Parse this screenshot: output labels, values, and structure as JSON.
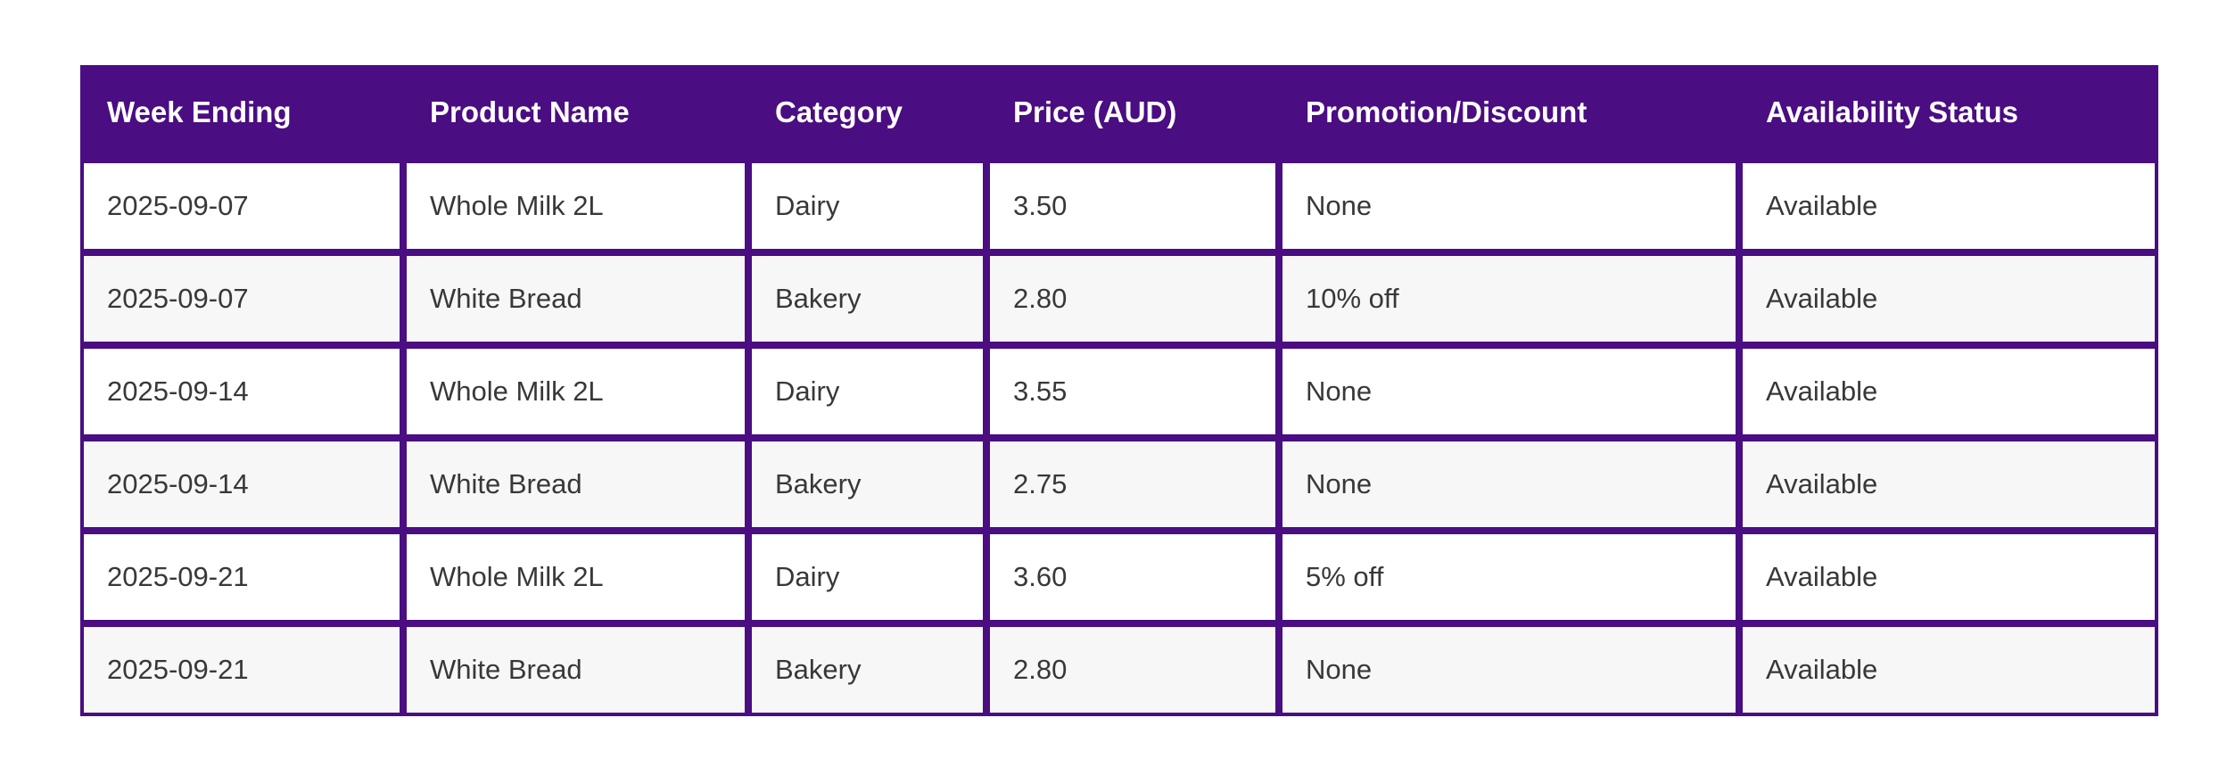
{
  "colors": {
    "accent_purple": "#4a0d82",
    "header_text": "#ffffff",
    "cell_text": "#383838",
    "row_odd_bg": "#ffffff",
    "row_even_bg": "#f7f7f7",
    "page_bg": "#ffffff"
  },
  "table": {
    "columns": [
      {
        "key": "week-ending",
        "label": "Week Ending"
      },
      {
        "key": "product-name",
        "label": "Product Name"
      },
      {
        "key": "category",
        "label": "Category"
      },
      {
        "key": "price-aud",
        "label": "Price (AUD)"
      },
      {
        "key": "promotion-discount",
        "label": "Promotion/Discount"
      },
      {
        "key": "availability-status",
        "label": "Availability Status"
      }
    ],
    "rows": [
      [
        "2025-09-07",
        "Whole Milk 2L",
        "Dairy",
        "3.50",
        "None",
        "Available"
      ],
      [
        "2025-09-07",
        "White Bread",
        "Bakery",
        "2.80",
        "10% off",
        "Available"
      ],
      [
        "2025-09-14",
        "Whole Milk 2L",
        "Dairy",
        "3.55",
        "None",
        "Available"
      ],
      [
        "2025-09-14",
        "White Bread",
        "Bakery",
        "2.75",
        "None",
        "Available"
      ],
      [
        "2025-09-21",
        "Whole Milk 2L",
        "Dairy",
        "3.60",
        "5% off",
        "Available"
      ],
      [
        "2025-09-21",
        "White Bread",
        "Bakery",
        "2.80",
        "None",
        "Available"
      ]
    ]
  }
}
